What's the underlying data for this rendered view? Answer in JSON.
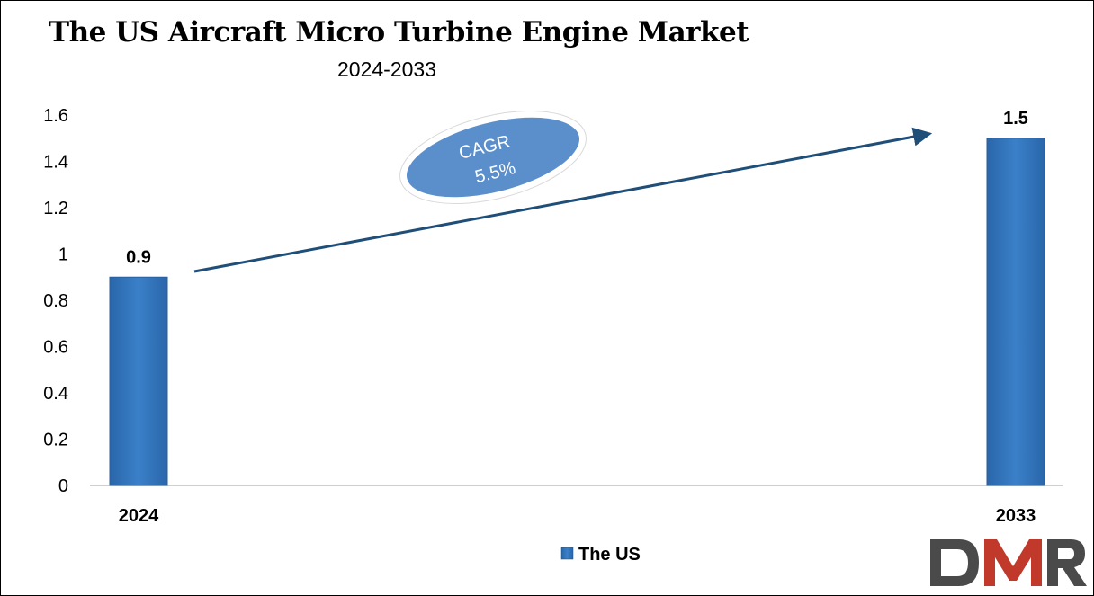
{
  "chart_data": {
    "type": "bar",
    "title": "The US Aircraft Micro Turbine Engine Market",
    "subtitle": "2024-2033",
    "categories": [
      "2024",
      "2033"
    ],
    "series": [
      {
        "name": "The US",
        "values": [
          0.9,
          1.5
        ],
        "data_labels": [
          "0.9",
          "1.5"
        ]
      }
    ],
    "ylim": [
      0,
      1.6
    ],
    "yticks": [
      "0",
      "0.2",
      "0.4",
      "0.6",
      "0.8",
      "1",
      "1.2",
      "1.4",
      "1.6"
    ],
    "xlabel": "",
    "ylabel": "",
    "grid": false,
    "legend_position": "bottom",
    "bar_color": "#3174bc",
    "annotation": {
      "label": "CAGR",
      "value": "5.5%",
      "color": "#5b8fcc"
    }
  },
  "logo": {
    "text": "DMR",
    "color_d": "#4a4a4a",
    "color_m": "#c0392b",
    "color_r": "#4a4a4a"
  }
}
